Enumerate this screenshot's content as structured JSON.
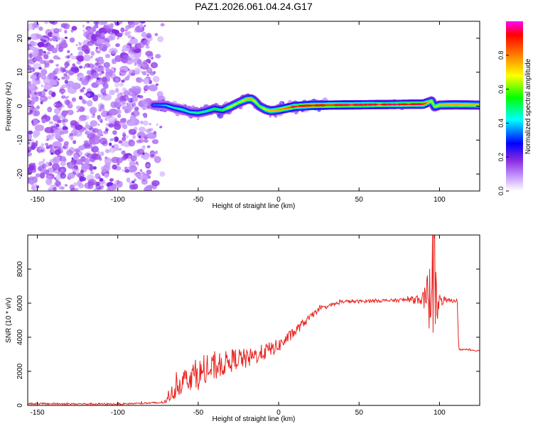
{
  "page": {
    "title": "PAZ1.2026.061.04.24.G17"
  },
  "chart_data": [
    {
      "type": "heatmap",
      "title": "PAZ1.2026.061.04.24.G17",
      "xlabel": "Height of straight line (km)",
      "ylabel": "Frequency (Hz)",
      "xlim": [
        -156,
        125
      ],
      "ylim": [
        -25,
        25
      ],
      "xticks": [
        -150,
        -100,
        -50,
        0,
        50,
        100
      ],
      "yticks": [
        -20,
        -10,
        0,
        10,
        20
      ],
      "colorbar": {
        "label": "Normalized spectral amplitude",
        "range": [
          0,
          1
        ],
        "ticks": [
          0.0,
          0.2,
          0.4,
          0.6,
          0.8
        ],
        "tick_labels": [
          "0.0",
          "0.2",
          "0.4",
          "0.6",
          "0.8"
        ],
        "colors": [
          "#ffffff",
          "#8a2be2",
          "#0000ff",
          "#00ffff",
          "#00ff00",
          "#ffff00",
          "#ff7f00",
          "#ff0000",
          "#ff00ff"
        ]
      },
      "noise_region_x": [
        -156,
        -72
      ],
      "ridge": {
        "x": [
          -75,
          -70,
          -65,
          -60,
          -55,
          -50,
          -45,
          -40,
          -35,
          -30,
          -25,
          -20,
          -17,
          -15,
          -12,
          -8,
          -5,
          0,
          5,
          10,
          20,
          30,
          50,
          70,
          90,
          95,
          97,
          100,
          110,
          125
        ],
        "freq": [
          0.3,
          0.2,
          -0.5,
          -1.0,
          -1.8,
          -2.0,
          -1.5,
          -0.8,
          -1.2,
          -0.2,
          1.0,
          2.0,
          2.1,
          1.5,
          0.0,
          -1.0,
          -1.4,
          -1.1,
          -0.6,
          -0.1,
          0.2,
          0.3,
          0.4,
          0.5,
          0.6,
          1.5,
          -0.2,
          0.3,
          0.4,
          0.3
        ],
        "amp": [
          0.35,
          0.4,
          0.45,
          0.5,
          0.45,
          0.5,
          0.5,
          0.55,
          0.55,
          0.7,
          0.65,
          0.75,
          0.8,
          0.7,
          0.6,
          0.7,
          0.75,
          0.8,
          0.85,
          0.9,
          0.95,
          0.9,
          0.9,
          0.85,
          0.95,
          0.7,
          0.6,
          0.75,
          0.8,
          0.75
        ]
      }
    },
    {
      "type": "line",
      "xlabel": "Height of straight line (km)",
      "ylabel": "SNR (10 * v/v)",
      "xlim": [
        -156,
        125
      ],
      "ylim": [
        0,
        10000
      ],
      "xticks": [
        -150,
        -100,
        -50,
        0,
        50,
        100
      ],
      "yticks": [
        0,
        2000,
        4000,
        6000,
        8000
      ],
      "series": [
        {
          "name": "SNR",
          "color": "#e8231f",
          "x": [
            -156,
            -100,
            -75,
            -70,
            -68,
            -65,
            -60,
            -55,
            -50,
            -45,
            -40,
            -35,
            -30,
            -25,
            -20,
            -15,
            -10,
            -5,
            0,
            5,
            10,
            15,
            20,
            25,
            30,
            40,
            50,
            60,
            70,
            80,
            90,
            93,
            95,
            96,
            97,
            98,
            100,
            105,
            111,
            112,
            120,
            125
          ],
          "y": [
            100,
            80,
            150,
            200,
            500,
            900,
            1400,
            1700,
            1800,
            2000,
            2200,
            2400,
            2600,
            2800,
            2700,
            2900,
            3100,
            3300,
            3500,
            3900,
            4300,
            4800,
            5200,
            5600,
            5800,
            6100,
            6100,
            6150,
            6150,
            6200,
            6250,
            6300,
            6300,
            6100,
            6300,
            6100,
            6150,
            6150,
            6150,
            3300,
            3250,
            3200
          ],
          "noise": [
            50,
            50,
            60,
            80,
            300,
            600,
            700,
            800,
            900,
            900,
            800,
            700,
            700,
            600,
            600,
            500,
            500,
            450,
            400,
            350,
            300,
            250,
            200,
            150,
            120,
            100,
            100,
            100,
            100,
            120,
            400,
            1800,
            2200,
            3000,
            3000,
            1800,
            500,
            120,
            100,
            60,
            50,
            50
          ]
        }
      ]
    }
  ]
}
